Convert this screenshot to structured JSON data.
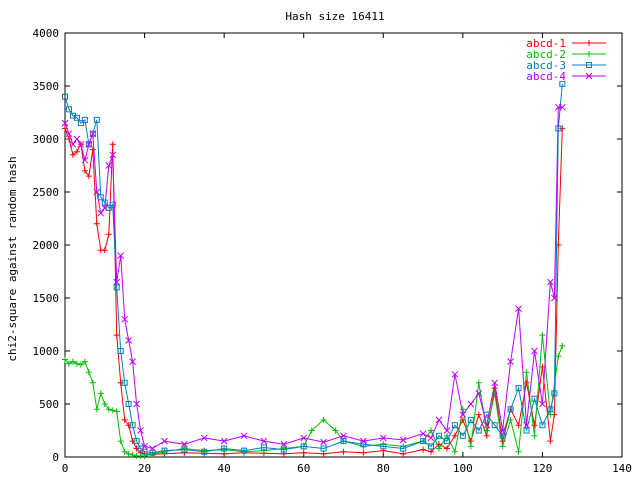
{
  "chart_data": {
    "type": "line",
    "title": "Hash size 16411",
    "xlabel": "",
    "ylabel": "chi2-square against random hash",
    "xlim": [
      0,
      140
    ],
    "ylim": [
      0,
      4000
    ],
    "x_ticks": [
      0,
      20,
      40,
      60,
      80,
      100,
      120,
      140
    ],
    "y_ticks": [
      0,
      500,
      1000,
      1500,
      2000,
      2500,
      3000,
      3500,
      4000
    ],
    "grid": false,
    "legend_position": "top-right",
    "series": [
      {
        "name": "abcd-1",
        "color": "#ff0000",
        "marker": "plus",
        "x": [
          0,
          1,
          2,
          3,
          4,
          5,
          6,
          7,
          8,
          9,
          10,
          11,
          12,
          13,
          14,
          15,
          16,
          17,
          18,
          19,
          20,
          22,
          25,
          30,
          35,
          40,
          45,
          50,
          55,
          60,
          65,
          70,
          75,
          80,
          85,
          90,
          92,
          94,
          96,
          98,
          100,
          102,
          104,
          106,
          108,
          110,
          112,
          114,
          116,
          118,
          120,
          122,
          123,
          124,
          125
        ],
        "y": [
          3100,
          3000,
          2850,
          2880,
          2950,
          2700,
          2650,
          2900,
          2200,
          1950,
          1950,
          2100,
          2950,
          1150,
          700,
          350,
          300,
          150,
          80,
          40,
          30,
          25,
          30,
          40,
          35,
          30,
          40,
          35,
          30,
          40,
          30,
          50,
          40,
          60,
          30,
          70,
          50,
          120,
          80,
          200,
          350,
          150,
          400,
          200,
          650,
          150,
          450,
          300,
          700,
          300,
          850,
          150,
          400,
          2000,
          3100
        ]
      },
      {
        "name": "abcd-2",
        "color": "#00c000",
        "marker": "plus",
        "x": [
          0,
          1,
          2,
          3,
          4,
          5,
          6,
          7,
          8,
          9,
          10,
          11,
          12,
          13,
          14,
          15,
          16,
          17,
          18,
          19,
          20,
          22,
          25,
          30,
          35,
          40,
          45,
          50,
          55,
          60,
          62,
          65,
          68,
          70,
          75,
          80,
          85,
          90,
          92,
          94,
          96,
          98,
          100,
          102,
          104,
          106,
          108,
          110,
          112,
          114,
          116,
          118,
          120,
          122,
          124,
          125
        ],
        "y": [
          920,
          880,
          900,
          880,
          870,
          900,
          800,
          700,
          450,
          600,
          500,
          450,
          440,
          430,
          150,
          50,
          30,
          20,
          10,
          10,
          10,
          30,
          50,
          80,
          60,
          70,
          50,
          60,
          80,
          100,
          250,
          350,
          250,
          150,
          100,
          120,
          100,
          150,
          250,
          80,
          200,
          50,
          450,
          100,
          700,
          250,
          600,
          100,
          350,
          50,
          800,
          200,
          1150,
          400,
          950,
          1050
        ]
      },
      {
        "name": "abcd-3",
        "color": "#0080c0",
        "marker": "square",
        "x": [
          0,
          1,
          2,
          3,
          4,
          5,
          6,
          7,
          8,
          9,
          10,
          11,
          12,
          13,
          14,
          15,
          16,
          17,
          18,
          19,
          20,
          22,
          25,
          30,
          35,
          40,
          45,
          50,
          55,
          60,
          65,
          70,
          75,
          80,
          85,
          90,
          92,
          94,
          96,
          98,
          100,
          102,
          104,
          106,
          108,
          110,
          112,
          114,
          116,
          118,
          120,
          122,
          123,
          124,
          125
        ],
        "y": [
          3400,
          3280,
          3220,
          3200,
          3150,
          3180,
          2950,
          3050,
          3180,
          2450,
          2400,
          2350,
          2380,
          1600,
          1000,
          700,
          500,
          300,
          150,
          80,
          50,
          40,
          60,
          70,
          50,
          80,
          60,
          90,
          70,
          100,
          80,
          150,
          120,
          100,
          80,
          150,
          100,
          200,
          150,
          300,
          200,
          350,
          250,
          400,
          300,
          200,
          450,
          650,
          250,
          550,
          300,
          450,
          600,
          3100,
          3520
        ]
      },
      {
        "name": "abcd-4",
        "color": "#c000ff",
        "marker": "cross",
        "x": [
          0,
          1,
          2,
          3,
          4,
          5,
          6,
          7,
          8,
          9,
          10,
          11,
          12,
          13,
          14,
          15,
          16,
          17,
          18,
          19,
          20,
          22,
          25,
          30,
          35,
          40,
          45,
          50,
          55,
          60,
          65,
          70,
          75,
          80,
          85,
          90,
          92,
          94,
          96,
          98,
          100,
          102,
          104,
          106,
          108,
          110,
          112,
          114,
          116,
          118,
          120,
          122,
          123,
          124,
          125
        ],
        "y": [
          3150,
          3050,
          2950,
          3000,
          2950,
          2800,
          2950,
          3050,
          2500,
          2300,
          2350,
          2750,
          2850,
          1650,
          1900,
          1300,
          1100,
          900,
          500,
          250,
          100,
          80,
          150,
          120,
          180,
          150,
          200,
          150,
          120,
          180,
          140,
          200,
          150,
          180,
          160,
          220,
          180,
          350,
          250,
          780,
          400,
          500,
          600,
          300,
          700,
          250,
          900,
          1400,
          300,
          1000,
          500,
          1650,
          1500,
          3300,
          3300
        ]
      }
    ]
  }
}
